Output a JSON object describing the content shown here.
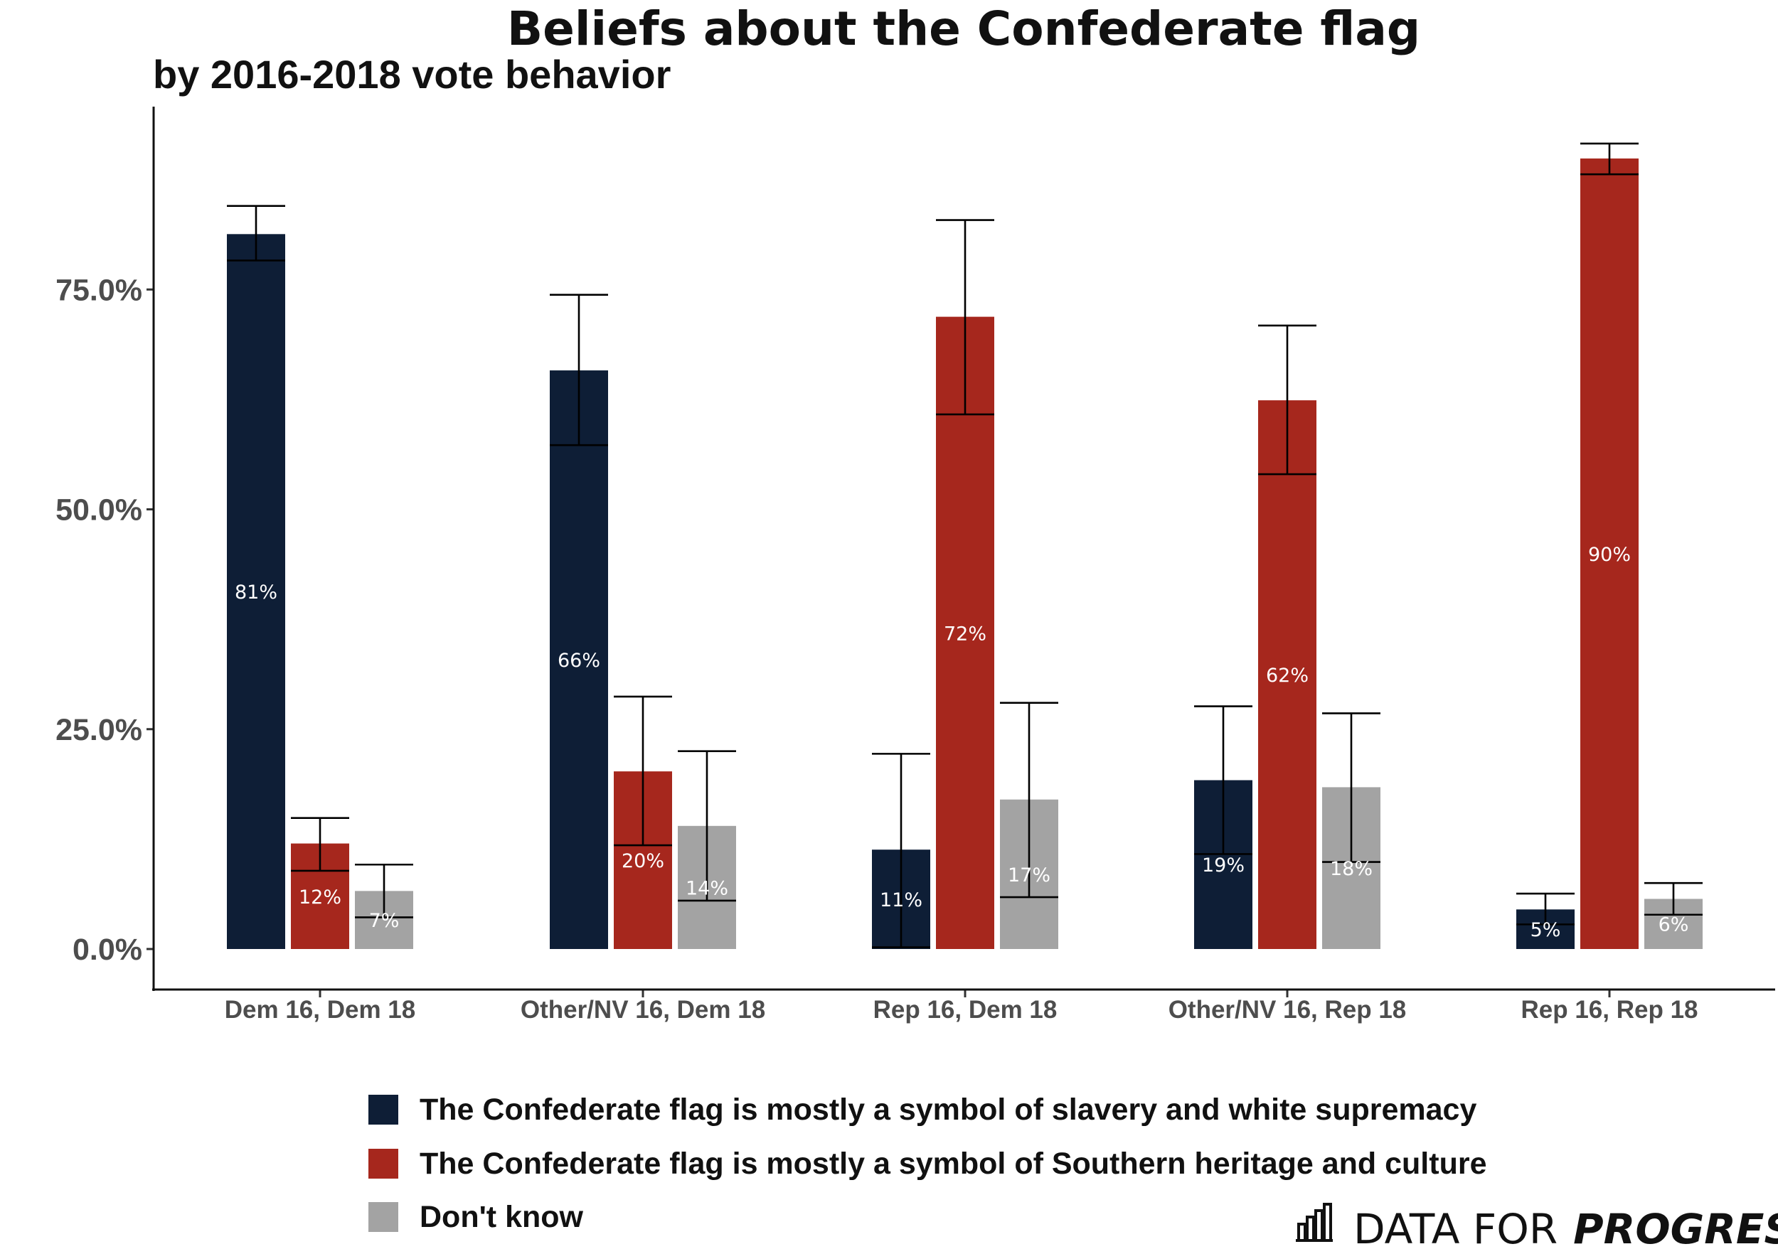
{
  "chart_data": {
    "type": "bar",
    "title": "Beliefs about the Confederate flag",
    "subtitle": "by 2016-2018 vote behavior",
    "xlabel": "",
    "ylabel": "",
    "ylim": [
      0,
      100
    ],
    "y_ticks": [
      0,
      25,
      50,
      75
    ],
    "y_tick_labels": [
      "0.0%",
      "25.0%",
      "50.0%",
      "75.0%"
    ],
    "grid": false,
    "legend_position": "bottom",
    "categories": [
      "Dem 16, Dem 18",
      "Other/NV 16, Dem 18",
      "Rep 16, Dem 18",
      "Other/NV 16, Rep 18",
      "Rep 16, Rep 18"
    ],
    "series": [
      {
        "name": "The Confederate flag is mostly a symbol of slavery and white supremacy",
        "color": "#0e1e36",
        "values": [
          81.3,
          65.8,
          11.3,
          19.2,
          4.5
        ],
        "error_low": [
          78.3,
          57.3,
          0.2,
          10.8,
          2.8
        ],
        "error_high": [
          84.5,
          74.4,
          22.2,
          27.6,
          6.3
        ],
        "labels": [
          "81%",
          "66%",
          "11%",
          "19%",
          "5%"
        ]
      },
      {
        "name": "The Confederate flag is mostly a symbol of Southern heritage and culture",
        "color": "#a6271d",
        "values": [
          12.0,
          20.2,
          71.9,
          62.4,
          89.9
        ],
        "error_low": [
          8.9,
          11.8,
          60.8,
          54.0,
          88.1
        ],
        "error_high": [
          14.9,
          28.7,
          82.9,
          70.9,
          91.6
        ],
        "labels": [
          "12%",
          "20%",
          "72%",
          "62%",
          "90%"
        ]
      },
      {
        "name": "Don't know",
        "color": "#a3a3a3",
        "values": [
          6.6,
          14.0,
          17.0,
          18.4,
          5.7
        ],
        "error_low": [
          3.6,
          5.5,
          5.9,
          9.9,
          3.9
        ],
        "error_high": [
          9.6,
          22.5,
          28.0,
          26.8,
          7.5
        ],
        "labels": [
          "7%",
          "14%",
          "17%",
          "18%",
          "6%"
        ]
      }
    ]
  },
  "branding": {
    "logo_icon": "bar-chart-icon",
    "text_regular": "DATA FOR",
    "text_bold": "PROGRESS"
  }
}
